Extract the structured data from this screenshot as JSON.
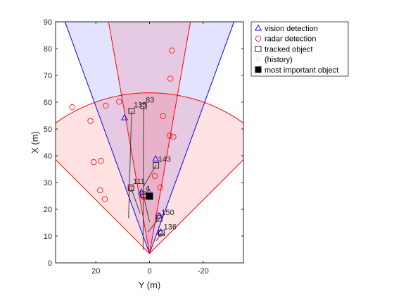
{
  "chart_data": {
    "type": "scatter",
    "xlabel": "Y (m)",
    "ylabel": "X (m)",
    "xlim": [
      35,
      -35
    ],
    "ylim": [
      0,
      90
    ],
    "xticks": [
      20,
      0,
      -20
    ],
    "xtick_labels": [
      "20",
      "0",
      "-20"
    ],
    "yticks": [
      0,
      10,
      20,
      30,
      40,
      50,
      60,
      70,
      80,
      90
    ],
    "ytick_labels": [
      "0",
      "10",
      "20",
      "30",
      "40",
      "50",
      "60",
      "70",
      "80",
      "90"
    ],
    "grid": false,
    "legend_position": "outside-top-right",
    "sensor_origin": {
      "y": 0,
      "x": 3.5
    },
    "coverage": [
      {
        "name": "vision coverage",
        "half_angle_deg": 20,
        "range": 100,
        "color": "#0000ff"
      },
      {
        "name": "radar long range",
        "half_angle_deg": 10,
        "range": 100,
        "color": "#ff0000"
      },
      {
        "name": "radar medium range",
        "half_angle_deg": 45,
        "range": 60,
        "color": "#ff0000"
      }
    ],
    "vision_detections": [
      {
        "y": 9.3,
        "x": 54.2
      },
      {
        "y": -2.3,
        "x": 38.8
      },
      {
        "y": 3.0,
        "x": 26.4
      },
      {
        "y": 0.2,
        "x": 26.4
      },
      {
        "y": -3.6,
        "x": 17.4
      },
      {
        "y": -4.2,
        "x": 11.5
      }
    ],
    "radar_detections": [
      {
        "y": 28.8,
        "x": 58.1
      },
      {
        "y": 16.3,
        "x": 58.7
      },
      {
        "y": 11.3,
        "x": 60.2
      },
      {
        "y": 22.0,
        "x": 53.0
      },
      {
        "y": -5.0,
        "x": 54.8
      },
      {
        "y": -8.3,
        "x": 79.3
      },
      {
        "y": -7.8,
        "x": 68.8
      },
      {
        "y": -7.5,
        "x": 47.5
      },
      {
        "y": -8.9,
        "x": 47.1
      },
      {
        "y": 20.8,
        "x": 37.6
      },
      {
        "y": 18.1,
        "x": 38.1
      },
      {
        "y": -2.0,
        "x": 32.4
      },
      {
        "y": -4.0,
        "x": 28.2
      },
      {
        "y": 18.4,
        "x": 27.1
      },
      {
        "y": 16.7,
        "x": 23.8
      },
      {
        "y": 6.8,
        "x": 27.7
      },
      {
        "y": 2.1,
        "x": 25.0
      },
      {
        "y": 2.1,
        "x": 24.6
      },
      {
        "y": -3.3,
        "x": 17.7
      },
      {
        "y": -4.1,
        "x": 10.9
      }
    ],
    "tracked_objects": [
      {
        "id": "135",
        "y": 6.7,
        "x": 56.7,
        "hx": 16.7,
        "hy": 7.8
      },
      {
        "id": "83",
        "y": 2.2,
        "x": 58.6,
        "hx": 4.8,
        "hy": 2.4
      },
      {
        "id": "143",
        "y": -2.4,
        "x": 36.4,
        "hx": 28.3,
        "hy": 2.4
      },
      {
        "id": "111",
        "y": 6.9,
        "x": 28.1,
        "hx": 18.4,
        "hy": 3.5
      },
      {
        "id": "4",
        "y": 2.3,
        "x": 25.5,
        "hx": 15.3,
        "hy": 0.0
      },
      {
        "id": "150",
        "y": -3.6,
        "x": 16.6,
        "hx": 11.5,
        "hy": 0.6
      },
      {
        "id": "136",
        "y": -4.5,
        "x": 11.2,
        "hx": 8.2,
        "hy": -2.5
      }
    ],
    "most_important_object": {
      "y": 0.0,
      "x": 24.9
    },
    "legend": [
      {
        "label": "vision detection",
        "marker": "triangle",
        "color": "#0000ff"
      },
      {
        "label": "radar detection",
        "marker": "circle",
        "color": "#ff0000"
      },
      {
        "label": "tracked object",
        "marker": "square",
        "color": "#000000"
      },
      {
        "label": "(history)",
        "marker": "dot",
        "color": "#d9d9d9"
      },
      {
        "label": "most important object",
        "marker": "filled-square",
        "color": "#000000"
      }
    ]
  }
}
